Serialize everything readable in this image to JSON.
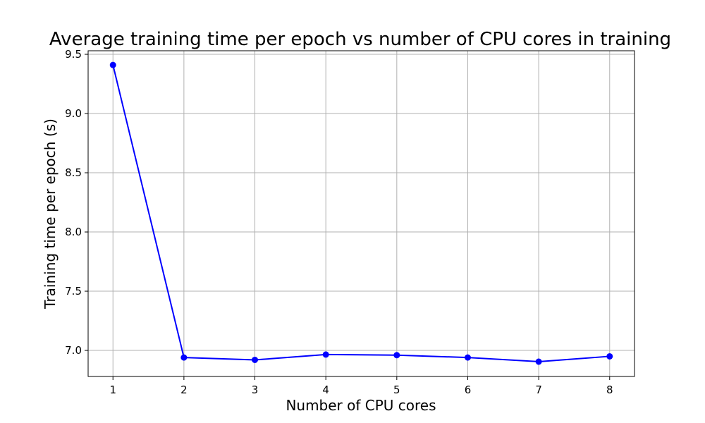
{
  "chart_data": {
    "type": "line",
    "title": "Average training time per epoch vs number of CPU cores in training",
    "xlabel": "Number of CPU cores",
    "ylabel": "Training time per epoch (s)",
    "x": [
      1,
      2,
      3,
      4,
      5,
      6,
      7,
      8
    ],
    "series": [
      {
        "values": [
          9.41,
          6.94,
          6.92,
          6.965,
          6.96,
          6.94,
          6.905,
          6.95
        ],
        "color": "#0000ff",
        "marker": "circle"
      }
    ],
    "xticks": [
      "1",
      "2",
      "3",
      "4",
      "5",
      "6",
      "7",
      "8"
    ],
    "yticks": [
      "7.0",
      "7.5",
      "8.0",
      "8.5",
      "9.0",
      "9.5"
    ],
    "ytick_values": [
      7.0,
      7.5,
      8.0,
      8.5,
      9.0,
      9.5
    ],
    "xlim": [
      0.65,
      8.35
    ],
    "ylim": [
      6.78,
      9.53
    ],
    "grid": true,
    "legend": false
  }
}
